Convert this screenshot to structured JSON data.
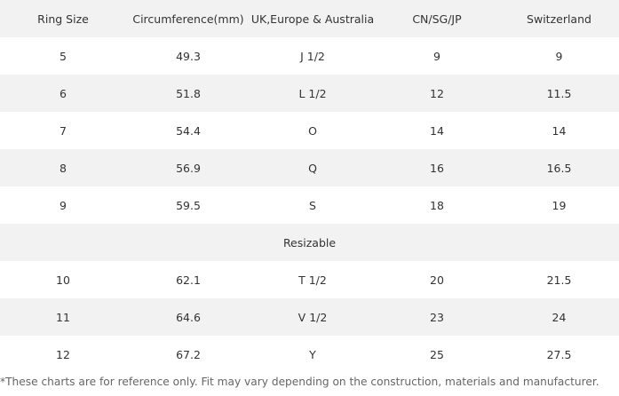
{
  "table": {
    "headers": [
      "Ring Size",
      "Circumference(mm)",
      "UK,Europe & Australia",
      "CN/SG/JP",
      "Switzerland"
    ],
    "rows_fixed": [
      [
        "5",
        "49.3",
        "J 1/2",
        "9",
        "9"
      ],
      [
        "6",
        "51.8",
        "L 1/2",
        "12",
        "11.5"
      ],
      [
        "7",
        "54.4",
        "O",
        "14",
        "14"
      ],
      [
        "8",
        "56.9",
        "Q",
        "16",
        "16.5"
      ],
      [
        "9",
        "59.5",
        "S",
        "18",
        "19"
      ]
    ],
    "section_label": "Resizable",
    "rows_resizable": [
      [
        "10",
        "62.1",
        "T 1/2",
        "20",
        "21.5"
      ],
      [
        "11",
        "64.6",
        "V 1/2",
        "23",
        "24"
      ],
      [
        "12",
        "67.2",
        "Y",
        "25",
        "27.5"
      ]
    ]
  },
  "footnote": "*These charts are for reference only. Fit may vary depending on the construction, materials and manufacturer.",
  "colors": {
    "row_shade": "#f2f2f2",
    "text": "#333333",
    "note_text": "#666666"
  }
}
